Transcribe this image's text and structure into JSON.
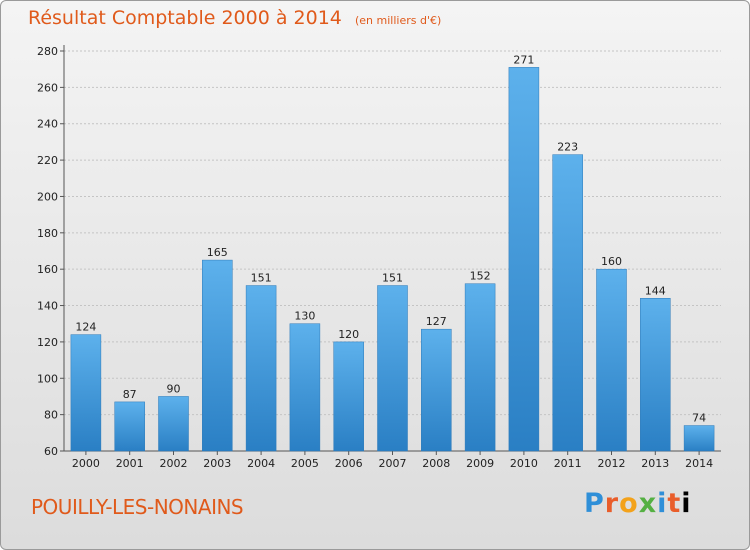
{
  "chart_data": {
    "type": "bar",
    "title": "Résultat Comptable 2000 à 2014",
    "unit_note": "(en milliers d'€)",
    "categories": [
      "2000",
      "2001",
      "2002",
      "2003",
      "2004",
      "2005",
      "2006",
      "2007",
      "2008",
      "2009",
      "2010",
      "2011",
      "2012",
      "2013",
      "2014"
    ],
    "values": [
      124,
      87,
      90,
      165,
      151,
      130,
      120,
      151,
      127,
      152,
      271,
      223,
      160,
      144,
      74
    ],
    "ylim": [
      60,
      280
    ],
    "yticks": [
      60,
      80,
      100,
      120,
      140,
      160,
      180,
      200,
      220,
      240,
      260,
      280
    ],
    "xlabel": "",
    "ylabel": "",
    "grid": true,
    "bar_color": "#3a97dc"
  },
  "footer": {
    "place": "POUILLY-LES-NONAINS",
    "logo_letters": [
      "P",
      "r",
      "o",
      "x",
      "i",
      "t",
      "i"
    ]
  },
  "colors": {
    "title": "#e05a1b",
    "bar_top": "#5db1ec",
    "bar_bottom": "#2a7fc4"
  }
}
